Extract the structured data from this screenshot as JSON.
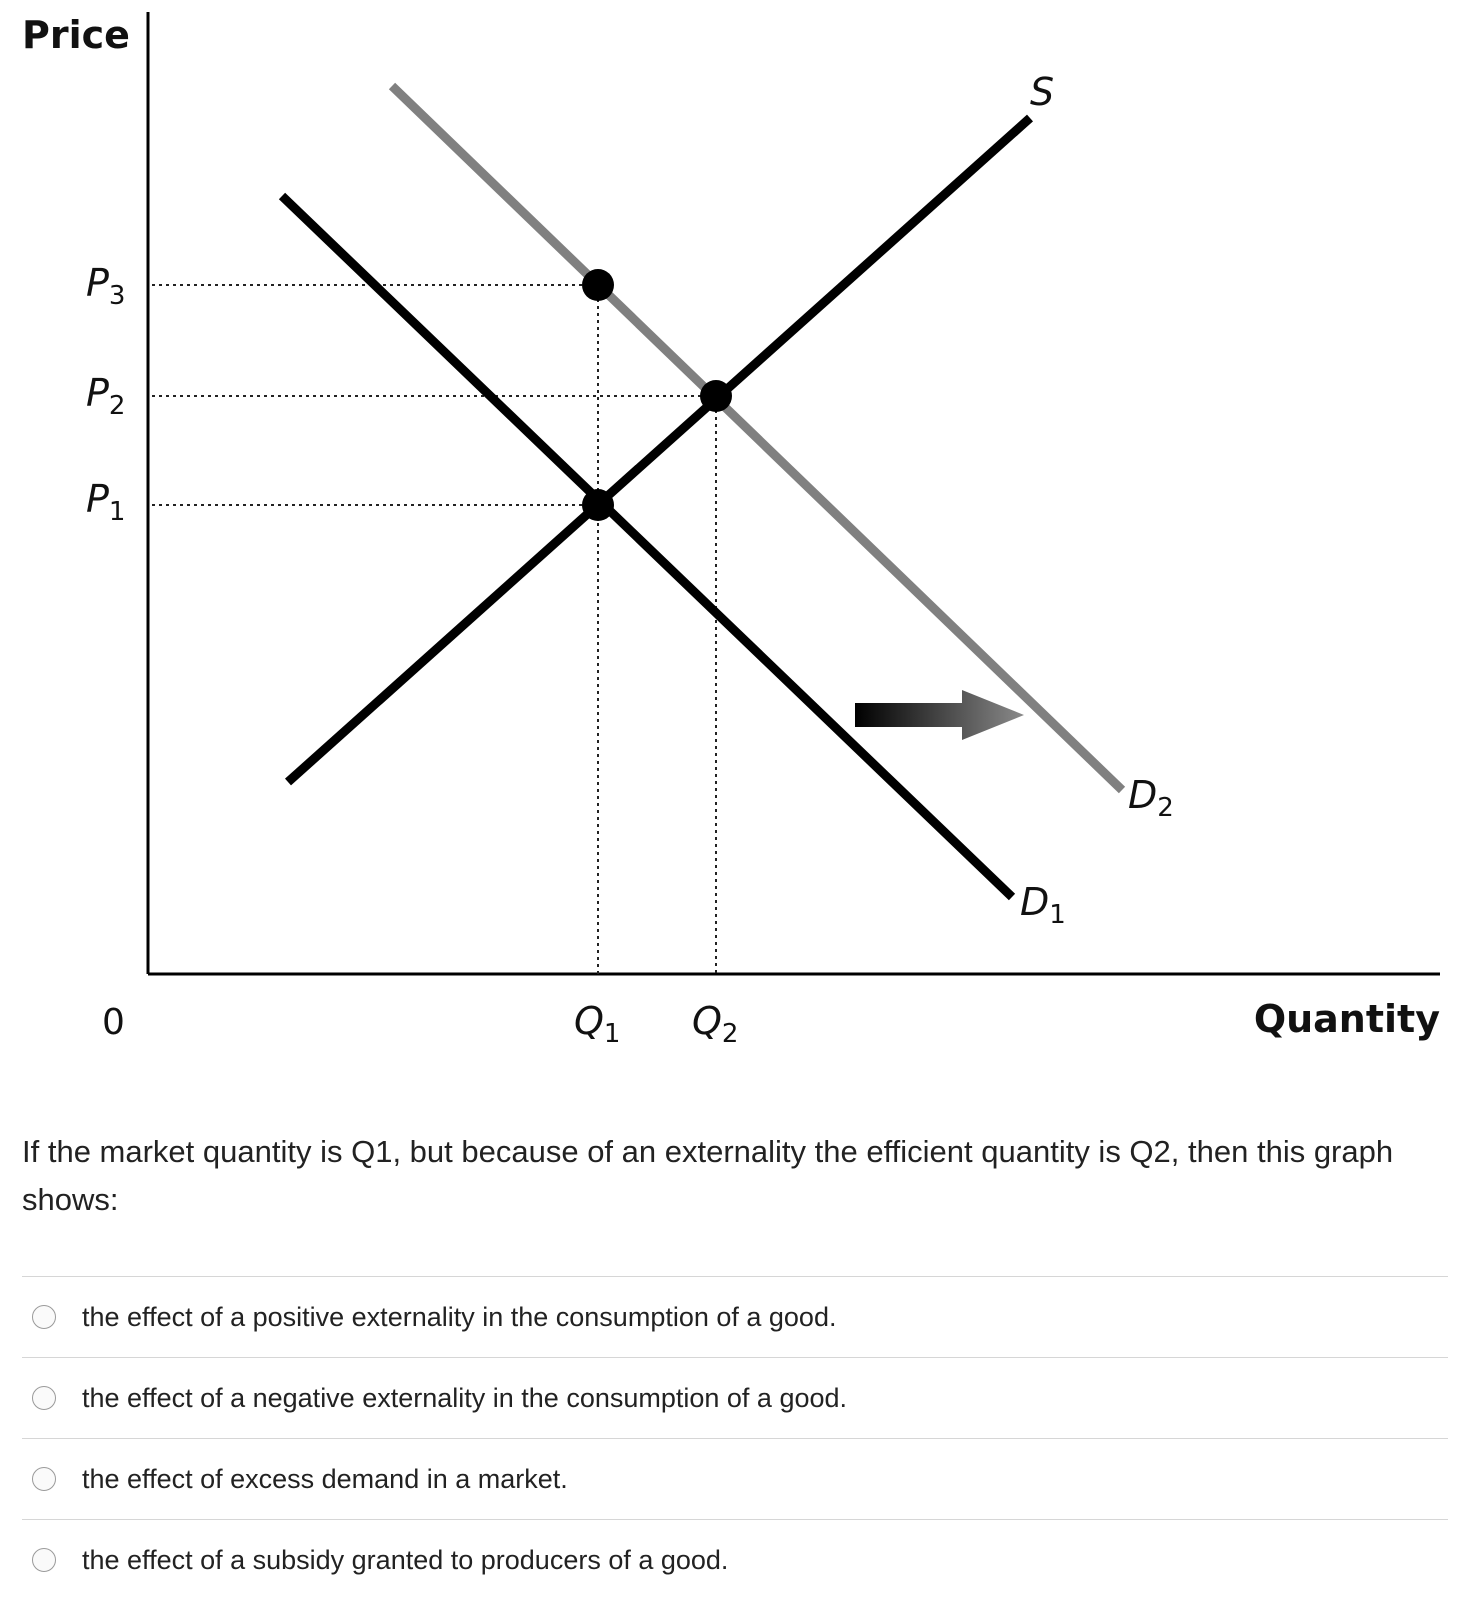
{
  "graph": {
    "y_axis_title": "Price",
    "x_axis_title": "Quantity",
    "origin_label": "0",
    "price_labels": [
      {
        "main": "P",
        "sub": "3"
      },
      {
        "main": "P",
        "sub": "2"
      },
      {
        "main": "P",
        "sub": "1"
      }
    ],
    "quantity_labels": [
      {
        "main": "Q",
        "sub": "1"
      },
      {
        "main": "Q",
        "sub": "2"
      }
    ],
    "curve_labels": {
      "supply": {
        "main": "S",
        "sub": ""
      },
      "demand1": {
        "main": "D",
        "sub": "1"
      },
      "demand2": {
        "main": "D",
        "sub": "2"
      }
    },
    "colors": {
      "supply": "#000000",
      "demand1": "#000000",
      "demand2": "#808080",
      "axes": "#000000"
    },
    "arrow_direction": "right"
  },
  "question": {
    "text": "If the market quantity is Q1, but because of an externality the efficient quantity is Q2, then this graph shows:"
  },
  "options": [
    {
      "label": "the effect of a positive externality in the consumption of a good."
    },
    {
      "label": "the effect of a negative externality in the consumption of a good."
    },
    {
      "label": "the effect of excess demand in a market."
    },
    {
      "label": "the effect of a subsidy granted to producers of a good."
    }
  ]
}
